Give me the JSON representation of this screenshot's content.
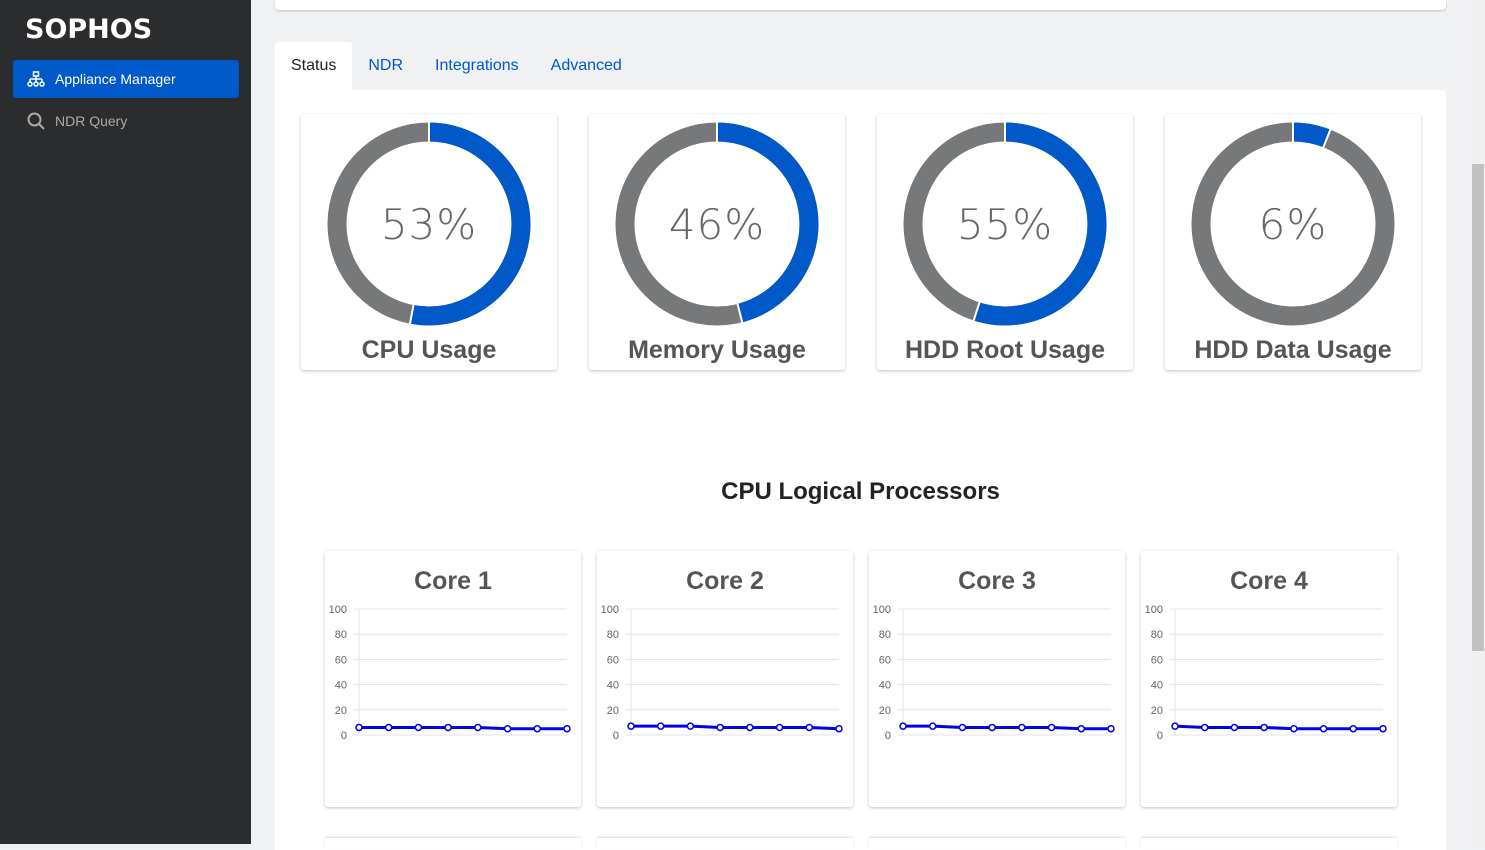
{
  "sidebar": {
    "logo": "SOPHOS",
    "items": [
      {
        "label": "Appliance Manager",
        "icon": "sitemap-icon",
        "active": true
      },
      {
        "label": "NDR Query",
        "icon": "search-icon",
        "active": false
      }
    ]
  },
  "tabs": [
    {
      "label": "Status",
      "active": true
    },
    {
      "label": "NDR"
    },
    {
      "label": "Integrations"
    },
    {
      "label": "Advanced"
    }
  ],
  "gauges": [
    {
      "label": "CPU Usage",
      "value": 53,
      "text": "53%"
    },
    {
      "label": "Memory Usage",
      "value": 46,
      "text": "46%"
    },
    {
      "label": "HDD Root Usage",
      "value": 55,
      "text": "55%"
    },
    {
      "label": "HDD Data Usage",
      "value": 6,
      "text": "6%"
    }
  ],
  "colors": {
    "accent": "#0059c8",
    "gauge_rest": "#76787a",
    "line": "#0000ee"
  },
  "section_title": "CPU Logical Processors",
  "chart_data": [
    {
      "type": "line",
      "title": "Core 1",
      "ylim": [
        0,
        100
      ],
      "yticks": [
        0,
        20,
        40,
        60,
        80,
        100
      ],
      "grid": true,
      "values": [
        6,
        6,
        6,
        6,
        6,
        5,
        5,
        5
      ]
    },
    {
      "type": "line",
      "title": "Core 2",
      "ylim": [
        0,
        100
      ],
      "yticks": [
        0,
        20,
        40,
        60,
        80,
        100
      ],
      "grid": true,
      "values": [
        7,
        7,
        7,
        6,
        6,
        6,
        6,
        5
      ]
    },
    {
      "type": "line",
      "title": "Core 3",
      "ylim": [
        0,
        100
      ],
      "yticks": [
        0,
        20,
        40,
        60,
        80,
        100
      ],
      "grid": true,
      "values": [
        7,
        7,
        6,
        6,
        6,
        6,
        5,
        5
      ]
    },
    {
      "type": "line",
      "title": "Core 4",
      "ylim": [
        0,
        100
      ],
      "yticks": [
        0,
        20,
        40,
        60,
        80,
        100
      ],
      "grid": true,
      "values": [
        7,
        6,
        6,
        6,
        5,
        5,
        5,
        5
      ]
    }
  ]
}
